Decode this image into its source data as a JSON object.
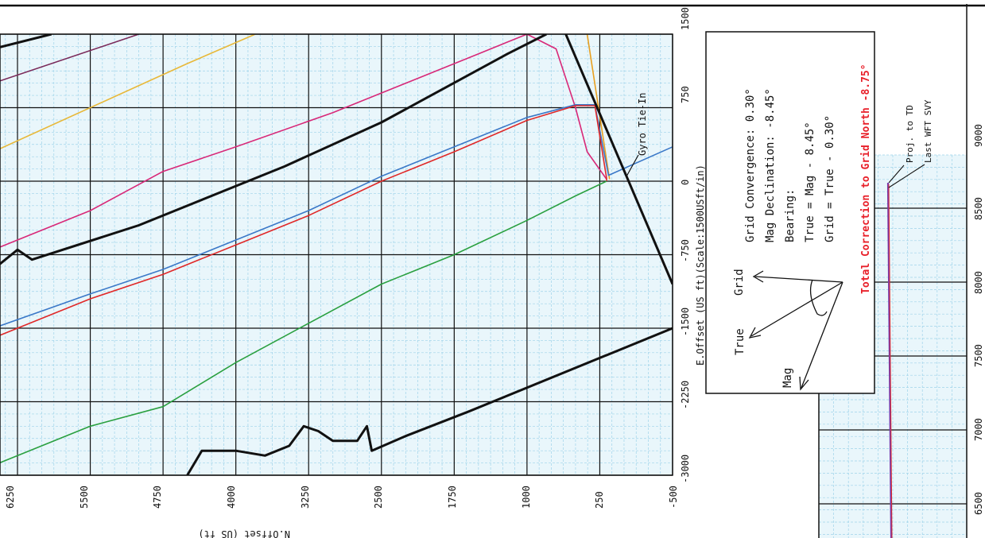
{
  "chart_data": {
    "type": "line",
    "xlabel": "N.Offset (US ft)",
    "ylabel": "E.Offset (US ft)(Scale:1500USft/in)",
    "x_ticks": [
      "6250",
      "5500",
      "4750",
      "4000",
      "3250",
      "2500",
      "1750",
      "1000",
      "250",
      "-500"
    ],
    "y_ticks": [
      "1500",
      "750",
      "0",
      "-750",
      "-1500",
      "-2250",
      "-3000"
    ],
    "xlim": [
      6500,
      -500
    ],
    "ylim": [
      -3000,
      1500
    ],
    "series": [
      {
        "color": "#e8b838",
        "points": [
          [
            6500,
            300
          ],
          [
            4500,
            1200
          ],
          [
            3800,
            1500
          ]
        ]
      },
      {
        "color": "#7a2a5a",
        "points": [
          [
            6500,
            1000
          ],
          [
            5000,
            1500
          ]
        ]
      },
      {
        "color": "#d82878",
        "points": [
          [
            6500,
            -700
          ],
          [
            5500,
            -300
          ],
          [
            4750,
            100
          ],
          [
            4000,
            350
          ],
          [
            3000,
            700
          ],
          [
            2250,
            1000
          ],
          [
            1500,
            1300
          ],
          [
            1000,
            1500
          ],
          [
            700,
            1350
          ],
          [
            500,
            750
          ],
          [
            380,
            300
          ],
          [
            180,
            20
          ]
        ]
      },
      {
        "color": "#e8a020",
        "points": [
          [
            380,
            1500
          ],
          [
            150,
            20
          ]
        ]
      },
      {
        "color": "#3a78c8",
        "points": [
          [
            6500,
            -1500
          ],
          [
            5500,
            -1150
          ],
          [
            4750,
            -900
          ],
          [
            4000,
            -600
          ],
          [
            3250,
            -300
          ],
          [
            2500,
            50
          ],
          [
            1750,
            350
          ],
          [
            1000,
            650
          ],
          [
            500,
            780
          ],
          [
            300,
            780
          ],
          [
            160,
            60
          ],
          [
            -500,
            350
          ]
        ]
      },
      {
        "color": "#e02828",
        "points": [
          [
            6500,
            -1600
          ],
          [
            5500,
            -1200
          ],
          [
            4750,
            -950
          ],
          [
            4000,
            -650
          ],
          [
            3250,
            -350
          ],
          [
            2500,
            0
          ],
          [
            1750,
            300
          ],
          [
            1000,
            620
          ],
          [
            500,
            770
          ],
          [
            300,
            770
          ],
          [
            180,
            30
          ],
          [
            180,
            0
          ]
        ]
      },
      {
        "color": "#2aa040",
        "points": [
          [
            6500,
            -2900
          ],
          [
            5500,
            -2500
          ],
          [
            4750,
            -2300
          ],
          [
            4000,
            -1850
          ],
          [
            3250,
            -1450
          ],
          [
            2500,
            -1050
          ],
          [
            1750,
            -750
          ],
          [
            1000,
            -400
          ],
          [
            500,
            -150
          ],
          [
            180,
            0
          ]
        ]
      },
      {
        "color": "#111111",
        "points": [
          [
            6500,
            1350
          ],
          [
            5900,
            1500
          ]
        ]
      },
      {
        "color": "#111111",
        "points": [
          [
            6500,
            -900
          ],
          [
            6250,
            -700
          ],
          [
            6100,
            -800
          ],
          [
            5000,
            -450
          ],
          [
            3500,
            150
          ],
          [
            2500,
            600
          ],
          [
            1200,
            1300
          ],
          [
            800,
            1500
          ]
        ]
      },
      {
        "color": "#111111",
        "points": [
          [
            4500,
            -3000
          ],
          [
            4350,
            -2750
          ],
          [
            4000,
            -2750
          ],
          [
            3700,
            -2800
          ],
          [
            3450,
            -2700
          ],
          [
            3300,
            -2500
          ],
          [
            3150,
            -2550
          ],
          [
            3000,
            -2650
          ],
          [
            2750,
            -2650
          ],
          [
            2650,
            -2500
          ],
          [
            2600,
            -2750
          ],
          [
            2250,
            -2600
          ],
          [
            1600,
            -2350
          ],
          [
            -500,
            -1500
          ]
        ]
      },
      {
        "color": "#111111",
        "points": [
          [
            600,
            1500
          ],
          [
            -500,
            -1050
          ]
        ]
      }
    ],
    "annotations": [
      "Gyro Tie-In"
    ]
  },
  "legend_box": {
    "grid_convergence": "Grid Convergence: 0.30°",
    "mag_declination": "Mag  Declination: -8.45°",
    "bearing": "Bearing:",
    "true_eq": "True = Mag - 8.45°",
    "grid_eq": "Grid = True - 0.30°",
    "total": "Total Correction to Grid North -8.75°",
    "arrow_grid": "Grid",
    "arrow_true": "True",
    "arrow_mag": "Mag",
    "total_color": "#e8202a"
  },
  "side_chart": {
    "ticks": [
      "9000",
      "8500",
      "8000",
      "7500",
      "7000",
      "6500"
    ],
    "labels": [
      "Proj. to TD",
      "Last WFT SVY"
    ]
  }
}
